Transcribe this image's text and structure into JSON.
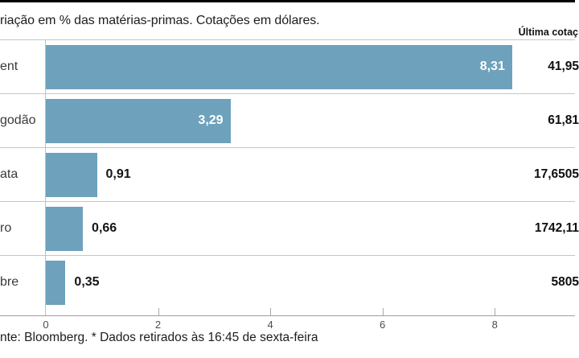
{
  "header": {
    "subtitle": "riação em % das matérias-primas. Cotações em dólares.",
    "last_quote_label": "Última cotaç"
  },
  "chart_data": {
    "type": "bar",
    "orientation": "horizontal",
    "title": "riação em % das matérias-primas. Cotações em dólares.",
    "xlabel": "",
    "ylabel": "",
    "xlim": [
      0,
      9.43
    ],
    "grid": "row-separators-only",
    "bar_color": "#6da1bc",
    "rows": [
      {
        "label": "ent",
        "value": 8.31,
        "value_label": "8,31",
        "last_quote": "41,95"
      },
      {
        "label": "godão",
        "value": 3.29,
        "value_label": "3,29",
        "last_quote": "61,81"
      },
      {
        "label": "ata",
        "value": 0.91,
        "value_label": "0,91",
        "last_quote": "17,6505"
      },
      {
        "label": "ro",
        "value": 0.66,
        "value_label": "0,66",
        "last_quote": "1742,11"
      },
      {
        "label": "bre",
        "value": 0.35,
        "value_label": "0,35",
        "last_quote": "5805"
      }
    ],
    "x_ticks": [
      "0",
      "2",
      "4",
      "6",
      "8"
    ],
    "x_tick_values": [
      0,
      2,
      4,
      6,
      8
    ]
  },
  "footer": {
    "source": "nte: Bloomberg.  * Dados retirados às 16:45 de sexta-feira"
  }
}
